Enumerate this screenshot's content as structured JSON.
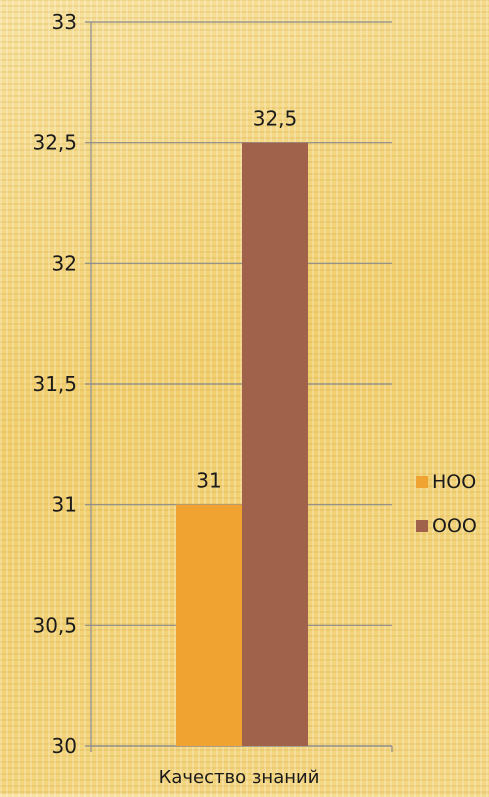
{
  "chart_data": {
    "type": "bar",
    "categories": [
      "Качество знаний"
    ],
    "series": [
      {
        "name": "НОО",
        "values": [
          31
        ],
        "color": "#f0a330"
      },
      {
        "name": "ООО",
        "values": [
          32.5
        ],
        "color": "#a0624b"
      }
    ],
    "title": "",
    "xlabel": "",
    "ylabel": "",
    "ylim": [
      30,
      33
    ],
    "yticks": [
      "30",
      "30,5",
      "31",
      "31,5",
      "32",
      "32,5",
      "33"
    ],
    "data_labels": [
      "31",
      "32,5"
    ],
    "grid": true,
    "legend_position": "right"
  }
}
